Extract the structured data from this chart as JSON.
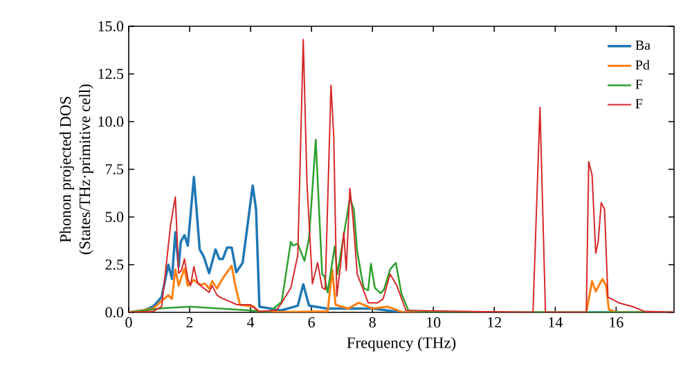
{
  "chart_data": {
    "type": "line",
    "xlabel": "Frequency (THz)",
    "ylabel": "Phonon projected DOS\n(States/THz·primitive cell)",
    "xlim": [
      0,
      17.9
    ],
    "ylim": [
      0,
      15
    ],
    "xticks": [
      0,
      2,
      4,
      6,
      8,
      10,
      12,
      14,
      16
    ],
    "yticks": [
      {
        "value": 0,
        "label": "0.0"
      },
      {
        "value": 2.5,
        "label": "2.5"
      },
      {
        "value": 5,
        "label": "5.0"
      },
      {
        "value": 7.5,
        "label": "7.5"
      },
      {
        "value": 10,
        "label": "10.0"
      },
      {
        "value": 12.5,
        "label": "12.5"
      },
      {
        "value": 15,
        "label": "15.0"
      }
    ],
    "legend": "top right",
    "grid": false,
    "series": [
      {
        "name": "Ba",
        "color": "#1f77b4",
        "x": [
          0,
          0.5,
          0.8,
          1.08,
          1.3,
          1.42,
          1.53,
          1.64,
          1.71,
          1.83,
          1.94,
          2.14,
          2.33,
          2.47,
          2.64,
          2.85,
          2.97,
          3.09,
          3.23,
          3.38,
          3.53,
          3.74,
          4.07,
          4.18,
          4.29,
          5.0,
          5.55,
          5.73,
          5.92,
          6.5,
          8.0,
          9.0,
          17.9
        ],
        "values": [
          0,
          0.1,
          0.3,
          0.8,
          2.5,
          1.76,
          4.2,
          2.4,
          3.7,
          4.05,
          3.5,
          7.1,
          3.3,
          2.9,
          2.05,
          3.3,
          2.8,
          2.8,
          3.4,
          3.4,
          2.1,
          2.6,
          6.65,
          5.4,
          0.3,
          0.1,
          0.35,
          1.47,
          0.35,
          0.2,
          0.2,
          0,
          0
        ]
      },
      {
        "name": "Pd",
        "color": "#ff7f0e",
        "x": [
          0,
          0.8,
          1.3,
          1.42,
          1.53,
          1.64,
          1.83,
          1.94,
          2.14,
          2.33,
          2.5,
          2.64,
          2.74,
          2.9,
          3.09,
          3.38,
          3.5,
          3.65,
          4.1,
          4.3,
          6.53,
          6.68,
          6.79,
          7.2,
          7.55,
          8.0,
          8.5,
          9.0,
          15.02,
          15.21,
          15.33,
          15.55,
          15.67,
          15.76,
          16.0,
          17.9
        ],
        "values": [
          0,
          0.2,
          0.9,
          0.7,
          2.25,
          1.4,
          2.3,
          1.4,
          1.7,
          1.45,
          1.5,
          1.25,
          1.64,
          1.25,
          1.8,
          2.44,
          1.4,
          0.4,
          0.3,
          0,
          0.05,
          2.25,
          0.4,
          0.2,
          0.5,
          0.2,
          0.3,
          0,
          0,
          1.64,
          1.1,
          1.75,
          1.4,
          0.15,
          0,
          0
        ]
      },
      {
        "name": "F",
        "color": "#2ca02c",
        "x": [
          0,
          1.0,
          2.0,
          3.0,
          4.0,
          4.6,
          5.02,
          5.32,
          5.39,
          5.55,
          5.77,
          5.92,
          6.14,
          6.23,
          6.35,
          6.42,
          6.53,
          6.76,
          6.85,
          7.26,
          7.39,
          7.5,
          7.71,
          7.86,
          7.95,
          8.08,
          8.27,
          8.38,
          8.58,
          8.77,
          8.95,
          9.18,
          10.0,
          17.9
        ],
        "values": [
          0,
          0.2,
          0.3,
          0.2,
          0.1,
          0,
          0.55,
          3.7,
          3.5,
          3.6,
          2.7,
          3.9,
          9.05,
          6.0,
          2.0,
          1.9,
          1.04,
          3.45,
          2.0,
          6.0,
          5.4,
          3.2,
          1.28,
          1.15,
          2.55,
          1.28,
          1.0,
          1.2,
          2.25,
          2.6,
          1.0,
          0.1,
          0,
          0
        ]
      },
      {
        "name": "F",
        "color": "#d62728",
        "x": [
          0,
          0.8,
          1.08,
          1.38,
          1.53,
          1.64,
          1.73,
          1.83,
          1.94,
          2.03,
          2.14,
          2.26,
          2.44,
          2.64,
          2.74,
          2.9,
          3.05,
          3.27,
          3.56,
          4.0,
          4.27,
          4.85,
          5.02,
          5.32,
          5.55,
          5.73,
          5.85,
          6.03,
          6.2,
          6.35,
          6.45,
          6.64,
          6.73,
          6.83,
          6.94,
          7.06,
          7.14,
          7.26,
          7.36,
          7.5,
          7.65,
          7.86,
          8.17,
          8.35,
          8.58,
          8.8,
          9.1,
          13.27,
          13.5,
          13.68,
          15.02,
          15.1,
          15.21,
          15.33,
          15.41,
          15.51,
          15.62,
          15.73,
          16.09,
          16.55,
          16.93,
          17.9
        ],
        "values": [
          0,
          0.05,
          0.3,
          4.65,
          6.05,
          2.05,
          2.2,
          2.8,
          1.75,
          1.4,
          2.4,
          1.55,
          1.3,
          1.05,
          1.4,
          0.9,
          0.75,
          0.6,
          0.4,
          0.4,
          0.05,
          0.1,
          0.5,
          1.28,
          3.0,
          14.3,
          6.8,
          1.5,
          2.6,
          1.3,
          1.2,
          11.9,
          9.25,
          0.85,
          2.3,
          4.2,
          2.2,
          6.5,
          4.95,
          2.0,
          1.4,
          0.5,
          0.5,
          0.7,
          2.0,
          1.4,
          0.1,
          0,
          10.75,
          0,
          0,
          7.9,
          7.2,
          3.1,
          3.7,
          5.75,
          5.4,
          0.8,
          0.5,
          0.3,
          0.05,
          0
        ]
      }
    ]
  }
}
